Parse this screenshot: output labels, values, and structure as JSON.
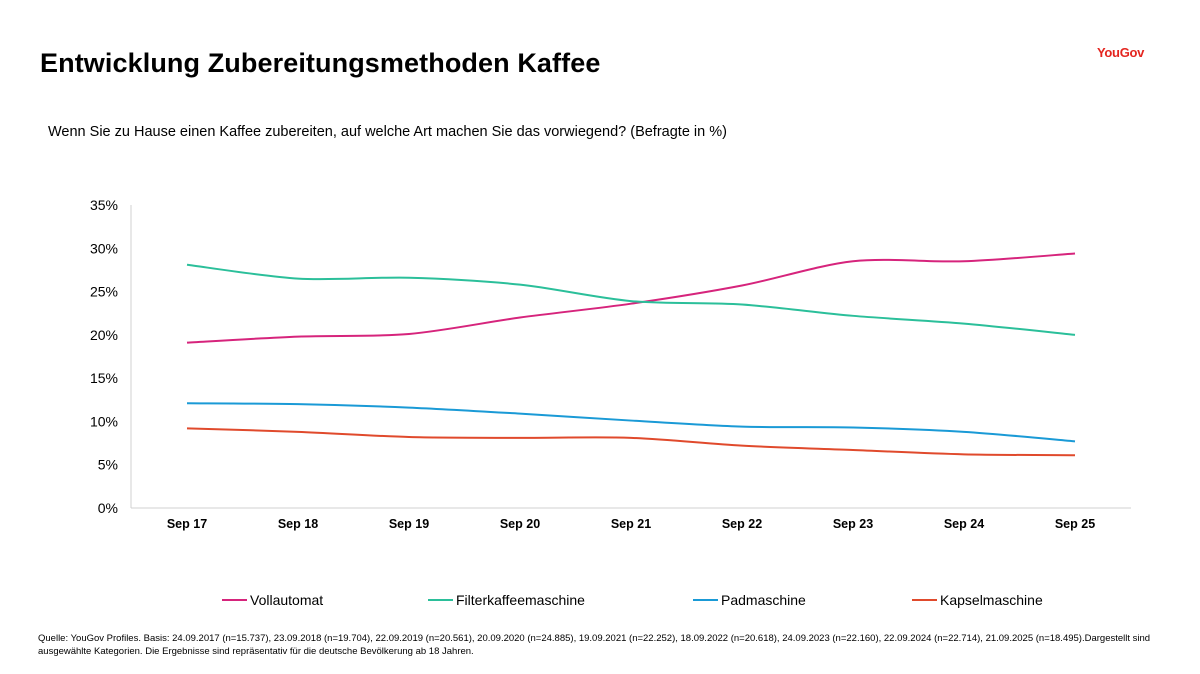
{
  "header": {
    "title": "Entwicklung Zubereitungsmethoden Kaffee",
    "brand": "YouGov",
    "question": "Wenn Sie zu Hause einen Kaffee zubereiten, auf welche Art machen Sie das vorwiegend? (Befragte in %)"
  },
  "footer": {
    "source": "Quelle: YouGov Profiles. Basis: 24.09.2017 (n=15.737), 23.09.2018 (n=19.704), 22.09.2019 (n=20.561), 20.09.2020 (n=24.885), 19.09.2021 (n=22.252), 18.09.2022 (n=20.618), 24.09.2023 (n=22.160), 22.09.2024 (n=22.714), 21.09.2025 (n=18.495).Dargestellt sind ausgewählte Kategorien. Die Ergebnisse sind repräsentativ für die deutsche Bevölkerung ab 18 Jahren."
  },
  "chart_data": {
    "type": "line",
    "title": "Entwicklung Zubereitungsmethoden Kaffee",
    "xlabel": "",
    "ylabel": "",
    "categories": [
      "Sep 17",
      "Sep 18",
      "Sep 19",
      "Sep 20",
      "Sep 21",
      "Sep 22",
      "Sep 23",
      "Sep 24",
      "Sep 25"
    ],
    "ylim": [
      0,
      35
    ],
    "yticks": [
      0,
      5,
      10,
      15,
      20,
      25,
      30,
      35
    ],
    "ytick_labels": [
      "0%",
      "5%",
      "10%",
      "15%",
      "20%",
      "25%",
      "30%",
      "35%"
    ],
    "grid": false,
    "legend_position": "bottom",
    "series": [
      {
        "name": "Vollautomat",
        "color": "#d6247c",
        "values": [
          19.1,
          19.8,
          20.1,
          22.0,
          23.6,
          25.7,
          28.5,
          28.5,
          29.4
        ]
      },
      {
        "name": "Filterkaffeemaschine",
        "color": "#2bbf9a",
        "values": [
          28.1,
          26.5,
          26.6,
          25.8,
          23.9,
          23.5,
          22.2,
          21.3,
          20.0
        ]
      },
      {
        "name": "Padmaschine",
        "color": "#1a9ad6",
        "values": [
          12.1,
          12.0,
          11.6,
          10.9,
          10.1,
          9.4,
          9.3,
          8.8,
          7.7
        ]
      },
      {
        "name": "Kapselmaschine",
        "color": "#e04a2c",
        "values": [
          9.2,
          8.8,
          8.2,
          8.1,
          8.1,
          7.2,
          6.7,
          6.2,
          6.1
        ]
      }
    ]
  }
}
